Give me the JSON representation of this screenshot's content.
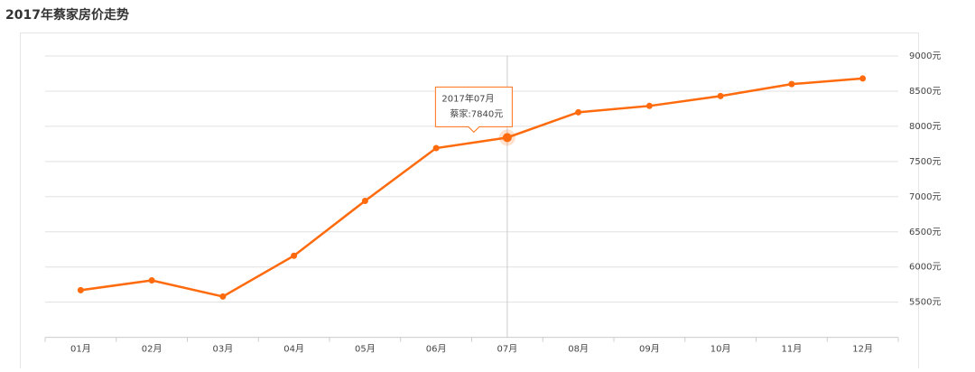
{
  "chart_data": {
    "type": "line",
    "title": "2017年蔡家房价走势",
    "categories": [
      "01月",
      "02月",
      "03月",
      "04月",
      "05月",
      "06月",
      "07月",
      "08月",
      "09月",
      "10月",
      "11月",
      "12月"
    ],
    "series": [
      {
        "name": "蔡家",
        "color": "#ff6a0c",
        "values": [
          5670,
          5810,
          5580,
          6160,
          6940,
          7690,
          7840,
          8200,
          8290,
          8430,
          8600,
          8680
        ]
      }
    ],
    "ylim": [
      5000,
      9000
    ],
    "yticks": [
      {
        "value": 5500,
        "label": "5500元"
      },
      {
        "value": 6000,
        "label": "6000元"
      },
      {
        "value": 6500,
        "label": "6500元"
      },
      {
        "value": 7000,
        "label": "7000元"
      },
      {
        "value": 7500,
        "label": "7500元"
      },
      {
        "value": 8000,
        "label": "8000元"
      },
      {
        "value": 8500,
        "label": "8500元"
      },
      {
        "value": 9000,
        "label": "9000元"
      }
    ],
    "grid": true,
    "tooltip": {
      "index": 6,
      "title": "2017年07月",
      "text": "蔡家:7840元"
    }
  }
}
